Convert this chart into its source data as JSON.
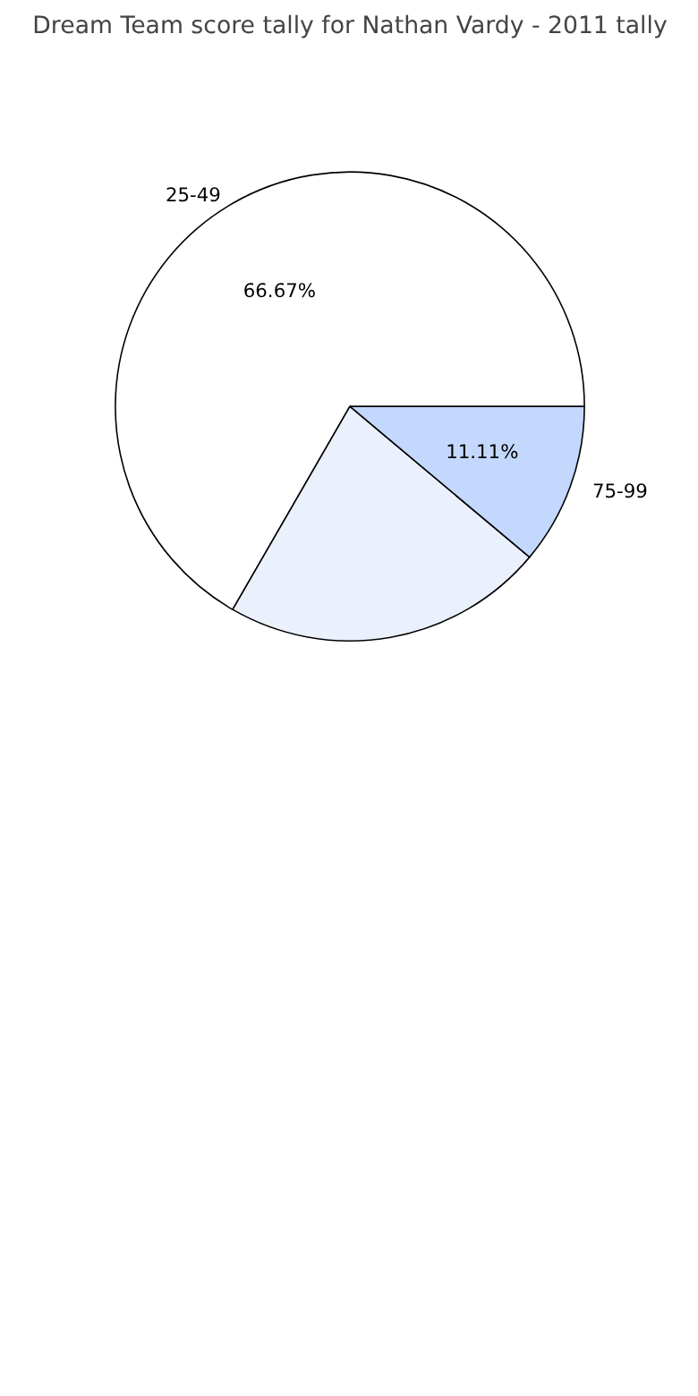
{
  "chart_data": {
    "type": "pie",
    "title": "Dream Team score tally for Nathan Vardy - 2011 tally",
    "categories": [
      "25-49",
      null,
      "75-99"
    ],
    "values": [
      66.67,
      22.22,
      11.11
    ],
    "colors": [
      "#ffffff",
      "#eaf1fd",
      "#c3d8fc"
    ],
    "value_labels": [
      "66.67%",
      null,
      "11.11%"
    ]
  }
}
